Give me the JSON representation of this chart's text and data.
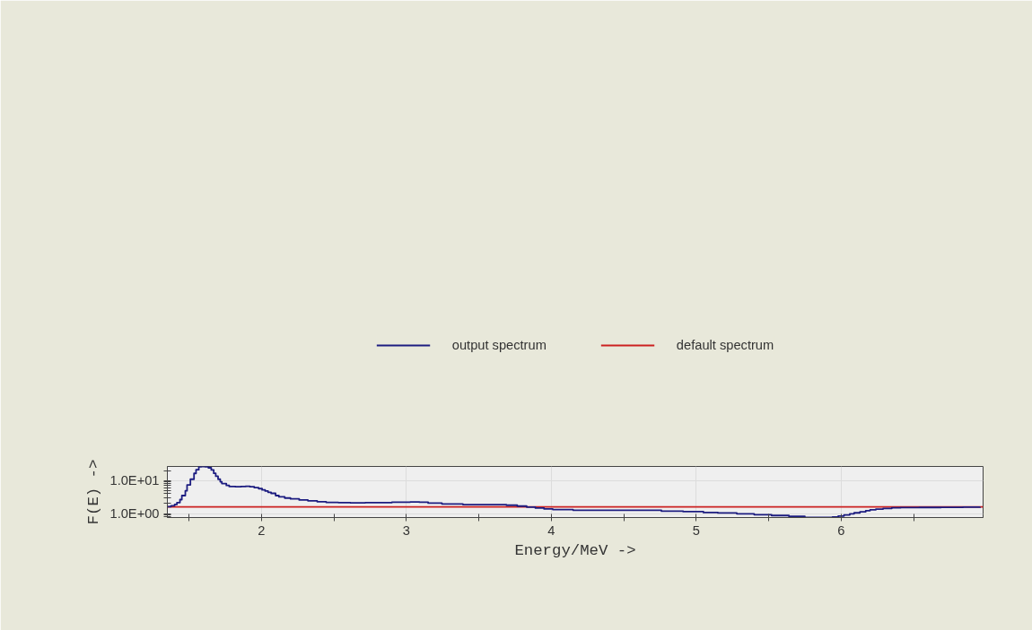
{
  "chart_data": {
    "type": "step",
    "xlabel": "Energy/MeV ->",
    "ylabel": "F(E) ->",
    "log": "y",
    "grid": true,
    "legend": "top",
    "xlim": [
      1.35,
      6.98
    ],
    "ylim": [
      0.756,
      26.8
    ],
    "xticks": [
      {
        "value": 1.5,
        "label": null
      },
      2,
      {
        "value": 2.5,
        "label": null
      },
      3,
      {
        "value": 3.5,
        "label": null
      },
      4,
      {
        "value": 4.5,
        "label": null
      },
      5,
      {
        "value": 5.5,
        "label": null
      },
      6,
      {
        "value": 6.5,
        "label": null
      }
    ],
    "yticks": [
      {
        "value": 0.8,
        "label": null
      },
      {
        "value": 0.9,
        "label": null
      },
      {
        "value": 1,
        "label": "1.0E+00"
      },
      {
        "value": 2,
        "label": null
      },
      {
        "value": 3,
        "label": null
      },
      {
        "value": 4,
        "label": null
      },
      {
        "value": 5,
        "label": null
      },
      {
        "value": 6,
        "label": null
      },
      {
        "value": 7,
        "label": null
      },
      {
        "value": 8,
        "label": null
      },
      {
        "value": 9,
        "label": null
      },
      {
        "value": 10,
        "label": "1.0E+01"
      },
      {
        "value": 20,
        "label": null
      }
    ],
    "series": [
      {
        "name": "output spectrum",
        "color": "#1c1c80",
        "x": [
          1.35,
          1.375,
          1.4,
          1.416,
          1.437,
          1.45,
          1.474,
          1.486,
          1.509,
          1.534,
          1.548,
          1.567,
          1.585,
          1.61,
          1.633,
          1.653,
          1.67,
          1.684,
          1.7,
          1.715,
          1.726,
          1.757,
          1.777,
          1.82,
          1.858,
          1.89,
          1.92,
          1.95,
          1.98,
          2.004,
          2.025,
          2.045,
          2.066,
          2.097,
          2.12,
          2.16,
          2.2,
          2.26,
          2.32,
          2.384,
          2.446,
          2.53,
          2.613,
          2.716,
          2.82,
          2.9,
          2.96,
          3.026,
          3.09,
          3.15,
          3.245,
          3.39,
          3.54,
          3.69,
          3.765,
          3.83,
          3.89,
          3.95,
          4.01,
          4.15,
          4.33,
          4.51,
          4.61,
          4.76,
          4.91,
          5.05,
          5.15,
          5.28,
          5.4,
          5.52,
          5.64,
          5.75,
          5.85,
          5.91,
          5.94,
          5.98,
          6.02,
          6.06,
          6.09,
          6.13,
          6.17,
          6.2,
          6.24,
          6.29,
          6.35,
          6.41,
          6.54,
          6.69,
          6.84,
          6.96
        ],
        "values": [
          1.62,
          1.72,
          1.88,
          2.15,
          2.64,
          3.5,
          4.9,
          7.4,
          11.0,
          16.5,
          21.3,
          26.2,
          26.8,
          26.2,
          24.4,
          21.0,
          16.6,
          13.5,
          11.0,
          9.2,
          8.1,
          7.1,
          6.6,
          6.5,
          6.6,
          6.7,
          6.5,
          6.1,
          5.7,
          5.2,
          4.8,
          4.4,
          4.1,
          3.5,
          3.2,
          2.95,
          2.78,
          2.58,
          2.44,
          2.28,
          2.18,
          2.15,
          2.12,
          2.13,
          2.15,
          2.2,
          2.22,
          2.25,
          2.2,
          2.07,
          1.95,
          1.87,
          1.87,
          1.79,
          1.68,
          1.57,
          1.47,
          1.38,
          1.32,
          1.26,
          1.25,
          1.26,
          1.25,
          1.18,
          1.14,
          1.07,
          1.04,
          0.98,
          0.92,
          0.87,
          0.82,
          0.76,
          0.76,
          0.76,
          0.78,
          0.84,
          0.91,
          0.98,
          1.05,
          1.13,
          1.22,
          1.3,
          1.36,
          1.43,
          1.49,
          1.52,
          1.53,
          1.54,
          1.56,
          1.58
        ]
      },
      {
        "name": "default spectrum",
        "color": "#cc2020",
        "x": [
          1.35,
          6.98
        ],
        "values": [
          1.58,
          1.58
        ]
      }
    ]
  }
}
